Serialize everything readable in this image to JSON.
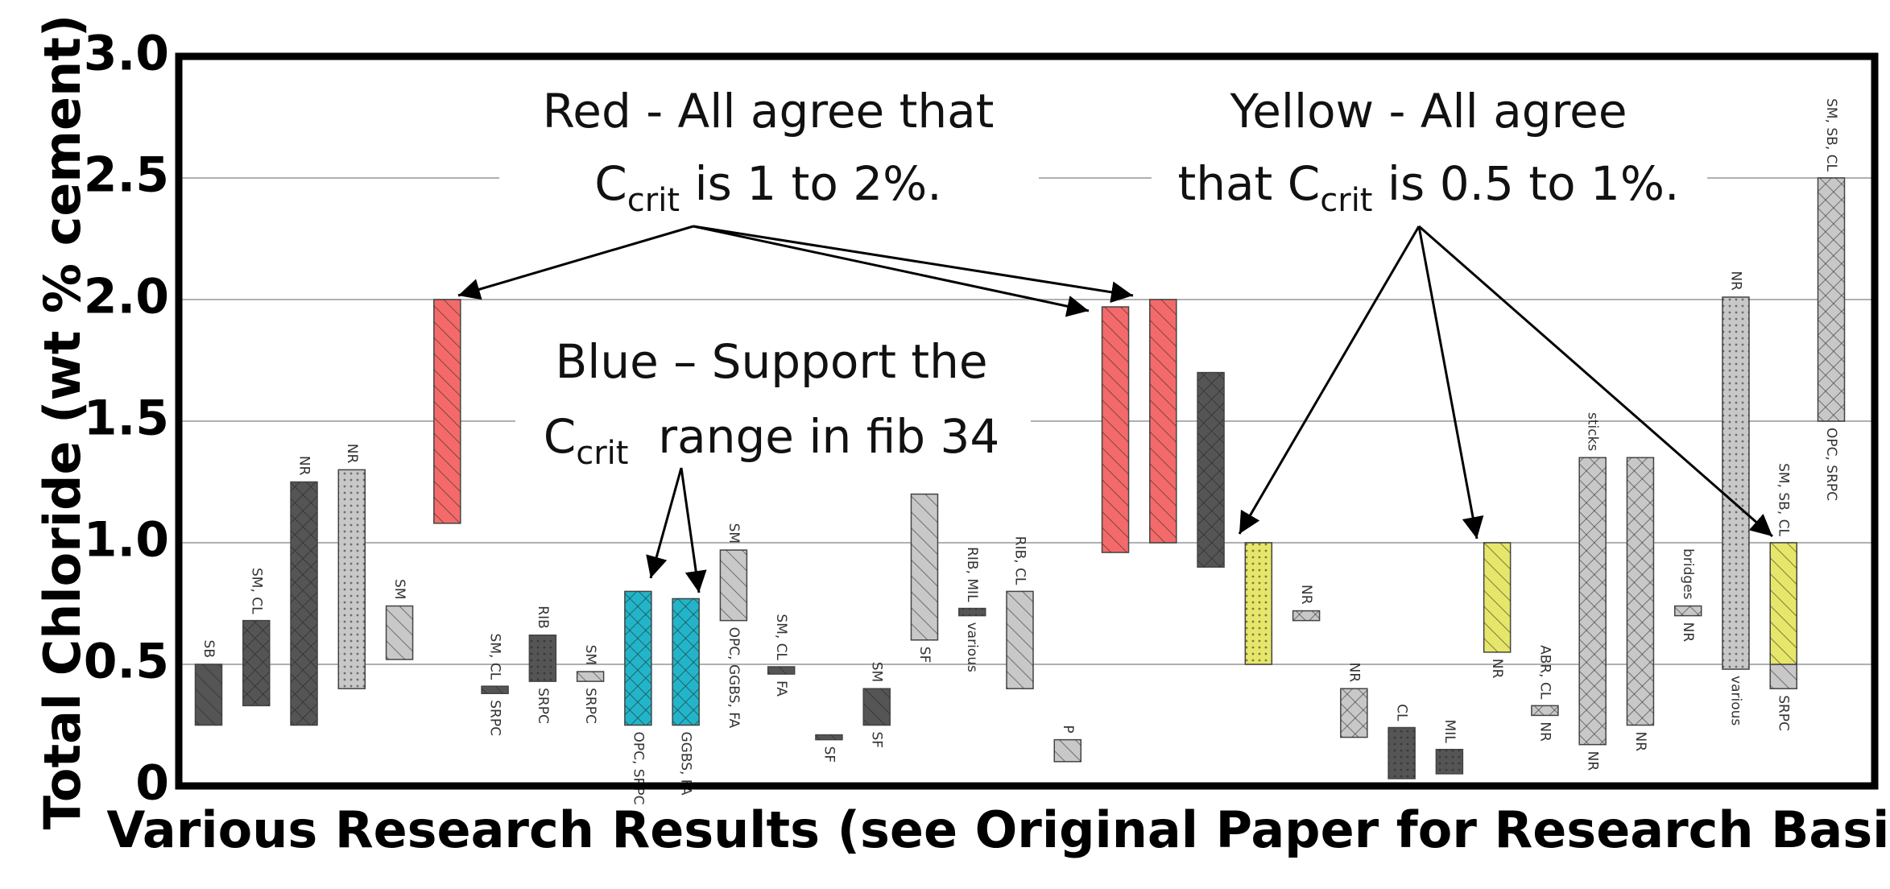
{
  "chart_data": {
    "type": "floating_bar",
    "x_label": "Various Research Results (see Original Paper for Research Basis)",
    "y_label": "Total Chloride (wt % cement)",
    "ylim": [
      0,
      3
    ],
    "yticks": [
      0,
      0.5,
      {
        "value": 1,
        "label": "1.0"
      },
      1.5,
      {
        "value": 2,
        "label": "2.0"
      },
      2.5,
      {
        "value": 3,
        "label": "3.0"
      }
    ],
    "grid": true,
    "slots": [
      {
        "ranges": [
          {
            "low": 0.25,
            "high": 0.5,
            "color": "#555555",
            "pattern": "hatch"
          }
        ],
        "above": "SB"
      },
      {
        "ranges": [
          {
            "low": 0.33,
            "high": 0.68,
            "color": "#555555",
            "pattern": "cross"
          }
        ],
        "above": "SM, CL"
      },
      {
        "ranges": [
          {
            "low": 0.25,
            "high": 1.25,
            "color": "#555555",
            "pattern": "cross"
          }
        ],
        "above": "NR"
      },
      {
        "ranges": [
          {
            "low": 0.4,
            "high": 1.3,
            "color": "#c8c8c8",
            "pattern": "dots"
          }
        ],
        "above": "NR"
      },
      {
        "ranges": [
          {
            "low": 0.52,
            "high": 0.74,
            "color": "#c8c8c8",
            "pattern": "hatch"
          }
        ],
        "above": "SM"
      },
      {
        "ranges": [
          {
            "low": 1.08,
            "high": 2.0,
            "color": "#f46a6a",
            "pattern": "hatch"
          }
        ]
      },
      {
        "ranges": [
          {
            "low": 0.38,
            "high": 0.41,
            "color": "#555555",
            "pattern": "hatch"
          }
        ],
        "above": "SM, CL",
        "below": "SRPC"
      },
      {
        "ranges": [
          {
            "low": 0.43,
            "high": 0.62,
            "color": "#555555",
            "pattern": "dots"
          }
        ],
        "above": "RIB",
        "below": "SRPC"
      },
      {
        "ranges": [
          {
            "low": 0.43,
            "high": 0.47,
            "color": "#c8c8c8",
            "pattern": "hatch"
          }
        ],
        "above": "SM",
        "below": "SRPC"
      },
      {
        "ranges": [
          {
            "low": 0.25,
            "high": 0.8,
            "color": "#22b5c9",
            "pattern": "cross"
          }
        ],
        "below": "OPC, SRPC"
      },
      {
        "ranges": [
          {
            "low": 0.25,
            "high": 0.77,
            "color": "#22b5c9",
            "pattern": "cross"
          }
        ],
        "below": "GGBS, FA"
      },
      {
        "ranges": [
          {
            "low": 0.68,
            "high": 0.97,
            "color": "#c8c8c8",
            "pattern": "hatch"
          }
        ],
        "above": "SM",
        "below": "OPC, GGBS, FA"
      },
      {
        "ranges": [
          {
            "low": 0.46,
            "high": 0.49,
            "color": "#555555",
            "pattern": "hatch"
          }
        ],
        "above": "SM, CL",
        "below": "FA"
      },
      {
        "ranges": [
          {
            "low": 0.19,
            "high": 0.21,
            "color": "#555555",
            "pattern": "hatch"
          }
        ],
        "below": "SF"
      },
      {
        "ranges": [
          {
            "low": 0.25,
            "high": 0.4,
            "color": "#555555",
            "pattern": "hatch"
          }
        ],
        "above": "SM",
        "below": "SF"
      },
      {
        "ranges": [
          {
            "low": 0.6,
            "high": 1.2,
            "color": "#c8c8c8",
            "pattern": "hatch"
          }
        ],
        "below": "SF"
      },
      {
        "ranges": [
          {
            "low": 0.7,
            "high": 0.73,
            "color": "#555555",
            "pattern": "dots"
          }
        ],
        "above": "RIB, MIL",
        "below": "various"
      },
      {
        "ranges": [
          {
            "low": 0.4,
            "high": 0.8,
            "color": "#c8c8c8",
            "pattern": "hatch"
          }
        ],
        "above": "RIB, CL"
      },
      {
        "ranges": [
          {
            "low": 0.1,
            "high": 0.19,
            "color": "#c8c8c8",
            "pattern": "hatch"
          }
        ],
        "above": "P"
      },
      {
        "ranges": [
          {
            "low": 0.96,
            "high": 1.97,
            "color": "#f46a6a",
            "pattern": "hatch"
          }
        ]
      },
      {
        "ranges": [
          {
            "low": 1.0,
            "high": 2.0,
            "color": "#f46a6a",
            "pattern": "hatch"
          }
        ]
      },
      {
        "ranges": [
          {
            "low": 0.9,
            "high": 1.7,
            "color": "#555555",
            "pattern": "cross"
          }
        ]
      },
      {
        "ranges": [
          {
            "low": 0.5,
            "high": 1.0,
            "color": "#e6e66a",
            "pattern": "dots"
          }
        ]
      },
      {
        "ranges": [
          {
            "low": 0.68,
            "high": 0.72,
            "color": "#c8c8c8",
            "pattern": "cross"
          }
        ],
        "above": "NR"
      },
      {
        "ranges": [
          {
            "low": 0.2,
            "high": 0.4,
            "color": "#c8c8c8",
            "pattern": "cross"
          }
        ],
        "above": "NR"
      },
      {
        "ranges": [
          {
            "low": 0.03,
            "high": 0.24,
            "color": "#555555",
            "pattern": "dots"
          }
        ],
        "above": "CL"
      },
      {
        "ranges": [
          {
            "low": 0.05,
            "high": 0.15,
            "color": "#555555",
            "pattern": "dots"
          }
        ],
        "above": "MIL"
      },
      {
        "ranges": [
          {
            "low": 0.55,
            "high": 1.0,
            "color": "#e6e66a",
            "pattern": "hatch"
          }
        ],
        "below": "NR"
      },
      {
        "ranges": [
          {
            "low": 0.29,
            "high": 0.33,
            "color": "#c8c8c8",
            "pattern": "cross"
          }
        ],
        "above": "ABR, CL",
        "below": "NR"
      },
      {
        "ranges": [
          {
            "low": 0.17,
            "high": 1.35,
            "color": "#c8c8c8",
            "pattern": "cross"
          }
        ],
        "above": "sticks",
        "below": "NR"
      },
      {
        "ranges": [
          {
            "low": 0.25,
            "high": 1.35,
            "color": "#c8c8c8",
            "pattern": "cross"
          }
        ],
        "below": "NR"
      },
      {
        "ranges": [
          {
            "low": 0.7,
            "high": 0.74,
            "color": "#c8c8c8",
            "pattern": "cross"
          }
        ],
        "above": "bridges",
        "below": "NR"
      },
      {
        "ranges": [
          {
            "low": 0.48,
            "high": 2.01,
            "color": "#c8c8c8",
            "pattern": "dots"
          }
        ],
        "above": "NR",
        "below": "various"
      },
      {
        "ranges": [
          {
            "low": 0.4,
            "high": 0.5,
            "color": "#c8c8c8",
            "pattern": "hatch"
          },
          {
            "low": 0.5,
            "high": 1.0,
            "color": "#e6e66a",
            "pattern": "hatch"
          }
        ],
        "above": "SM, SB, CL",
        "below": "SRPC"
      },
      {
        "ranges": [
          {
            "low": 1.5,
            "high": 2.5,
            "color": "#c8c8c8",
            "pattern": "cross"
          }
        ],
        "above": "SM, SB, CL",
        "below": "OPC, SRPC"
      }
    ],
    "annotations": [
      {
        "line1": "Red - All agree that",
        "symbol": "C",
        "subscript": "crit",
        "rest": " is 1 to 2%."
      },
      {
        "line1": "Blue – Support the",
        "symbol": "C",
        "subscript": "crit",
        "rest": "  range in fib 34"
      },
      {
        "line1": "Yellow - All agree",
        "prefix": "that ",
        "symbol": "C",
        "subscript": "crit",
        "rest": " is 0.5 to 1%."
      }
    ]
  }
}
